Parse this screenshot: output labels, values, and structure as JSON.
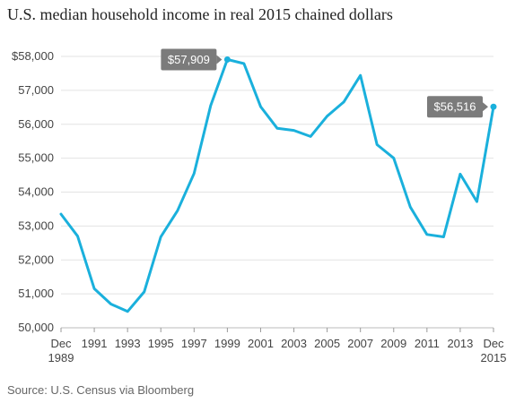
{
  "chart_data": {
    "type": "line",
    "title": "U.S. median household income in real 2015 chained dollars",
    "source": "Source: U.S. Census via Bloomberg",
    "x": [
      1989,
      1990,
      1991,
      1992,
      1993,
      1994,
      1995,
      1996,
      1997,
      1998,
      1999,
      2000,
      2001,
      2002,
      2003,
      2004,
      2005,
      2006,
      2007,
      2008,
      2009,
      2010,
      2011,
      2012,
      2013,
      2014,
      2015
    ],
    "series": [
      {
        "values": [
          53350,
          52700,
          51150,
          50700,
          50480,
          51060,
          52680,
          53450,
          54550,
          56550,
          57909,
          57790,
          56520,
          55880,
          55820,
          55640,
          56240,
          56660,
          57440,
          55400,
          55000,
          53560,
          52750,
          52680,
          54530,
          53720,
          56516
        ],
        "color": "#1ab0dc"
      }
    ],
    "x_ticks": [
      {
        "x": 1989,
        "lines": [
          "Dec",
          "1989"
        ]
      },
      {
        "x": 1991,
        "lines": [
          "1991"
        ]
      },
      {
        "x": 1993,
        "lines": [
          "1993"
        ]
      },
      {
        "x": 1995,
        "lines": [
          "1995"
        ]
      },
      {
        "x": 1997,
        "lines": [
          "1997"
        ]
      },
      {
        "x": 1999,
        "lines": [
          "1999"
        ]
      },
      {
        "x": 2001,
        "lines": [
          "2001"
        ]
      },
      {
        "x": 2003,
        "lines": [
          "2003"
        ]
      },
      {
        "x": 2005,
        "lines": [
          "2005"
        ]
      },
      {
        "x": 2007,
        "lines": [
          "2007"
        ]
      },
      {
        "x": 2009,
        "lines": [
          "2009"
        ]
      },
      {
        "x": 2011,
        "lines": [
          "2011"
        ]
      },
      {
        "x": 2013,
        "lines": [
          "2013"
        ]
      },
      {
        "x": 2015,
        "lines": [
          "Dec",
          "2015"
        ]
      }
    ],
    "y_ticks": [
      {
        "value": 50000,
        "label": "50,000"
      },
      {
        "value": 51000,
        "label": "51,000"
      },
      {
        "value": 52000,
        "label": "52,000"
      },
      {
        "value": 53000,
        "label": "53,000"
      },
      {
        "value": 54000,
        "label": "54,000"
      },
      {
        "value": 55000,
        "label": "55,000"
      },
      {
        "value": 56000,
        "label": "56,000"
      },
      {
        "value": 57000,
        "label": "57,000"
      },
      {
        "value": 58000,
        "label": "$58,000"
      }
    ],
    "xlim": [
      1989,
      2015
    ],
    "ylim": [
      50000,
      58000
    ],
    "grid": true,
    "annotations": [
      {
        "x": 1999,
        "y": 57909,
        "label": "$57,909",
        "placement": "left"
      },
      {
        "x": 2015,
        "y": 56516,
        "label": "$56,516",
        "placement": "left"
      }
    ],
    "colors": {
      "line": "#1ab0dc",
      "grid": "#e3e3e3",
      "callout": "#7b7b7b",
      "text": "#444444"
    }
  }
}
